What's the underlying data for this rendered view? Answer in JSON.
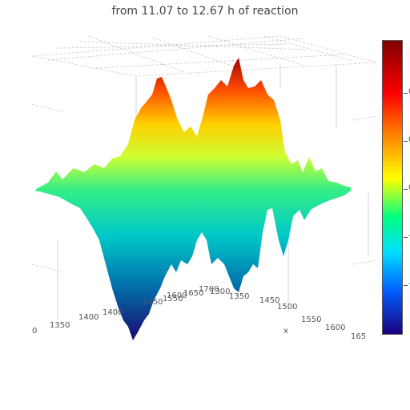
{
  "chart_data": {
    "type": "surface",
    "title": "from 11.07 to 12.67 h of reaction",
    "x_axis": {
      "label": "x",
      "ticks_front": [
        "1350",
        "1400",
        "1450",
        "1500",
        "1550",
        "1600",
        "165"
      ],
      "ticks_back": [
        "1400",
        "1450",
        "1550",
        "1600",
        "1650",
        "1700",
        "1300",
        "1350"
      ]
    },
    "z_axis_edge_label": "0",
    "colorbar": {
      "colors": [
        "#800000",
        "#ff0000",
        "#ff8000",
        "#ffff00",
        "#00ff80",
        "#00e0ff",
        "#0060ff",
        "#1a0080"
      ],
      "tick_labels": [
        "0",
        "0",
        "0",
        "-",
        "-"
      ]
    },
    "grid": true
  }
}
